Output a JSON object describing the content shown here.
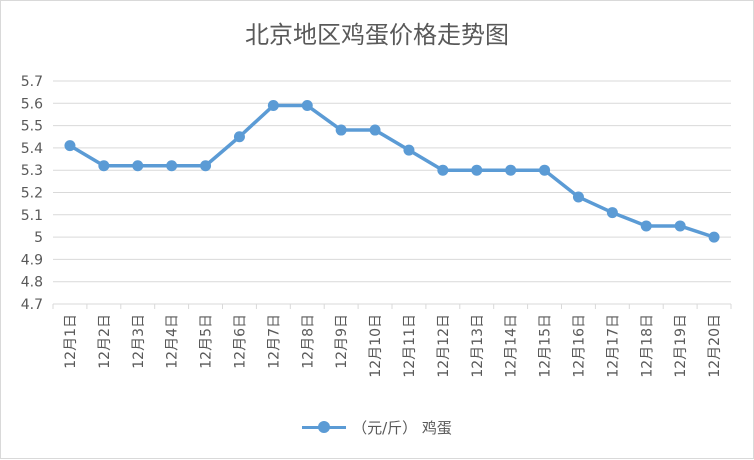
{
  "chart_data": {
    "type": "line",
    "title": "北京地区鸡蛋价格走势图",
    "categories": [
      "12月1日",
      "12月2日",
      "12月3日",
      "12月4日",
      "12月5日",
      "12月6日",
      "12月7日",
      "12月8日",
      "12月9日",
      "12月10日",
      "12月11日",
      "12月12日",
      "12月13日",
      "12月14日",
      "12月15日",
      "12月16日",
      "12月17日",
      "12月18日",
      "12月19日",
      "12月20日"
    ],
    "series": [
      {
        "name": "（元/斤） 鸡蛋",
        "values": [
          5.41,
          5.32,
          5.32,
          5.32,
          5.32,
          5.45,
          5.59,
          5.59,
          5.48,
          5.48,
          5.39,
          5.3,
          5.3,
          5.3,
          5.3,
          5.18,
          5.11,
          5.05,
          5.05,
          5.0
        ]
      }
    ],
    "y_ticks": [
      "4.7",
      "4.8",
      "4.9",
      "5",
      "5.1",
      "5.2",
      "5.3",
      "5.4",
      "5.5",
      "5.6",
      "5.7"
    ],
    "ylim": [
      4.7,
      5.7
    ],
    "xlabel": "",
    "ylabel": "",
    "grid": true,
    "legend_position": "bottom",
    "line_color": "#5b9bd5"
  }
}
